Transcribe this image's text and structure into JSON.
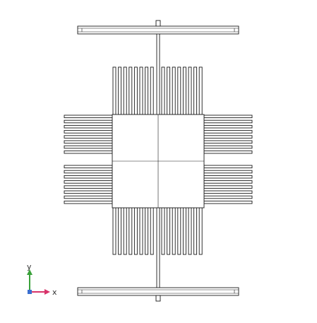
{
  "viewport": {
    "background": "#ffffff",
    "edge_color": "#1a1a1a"
  },
  "triad": {
    "x_label": "x",
    "y_label": "y",
    "x_color": "#d8336a",
    "y_color": "#3aa13a",
    "origin_color": "#3a6fd0"
  },
  "model": {
    "fin_blocks": [
      {
        "id": "top",
        "fins_per_group": 8,
        "groups": 2
      },
      {
        "id": "bottom",
        "fins_per_group": 8,
        "groups": 2
      },
      {
        "id": "left",
        "fins_per_group": 8,
        "groups": 2
      },
      {
        "id": "right",
        "fins_per_group": 8,
        "groups": 2
      }
    ]
  }
}
